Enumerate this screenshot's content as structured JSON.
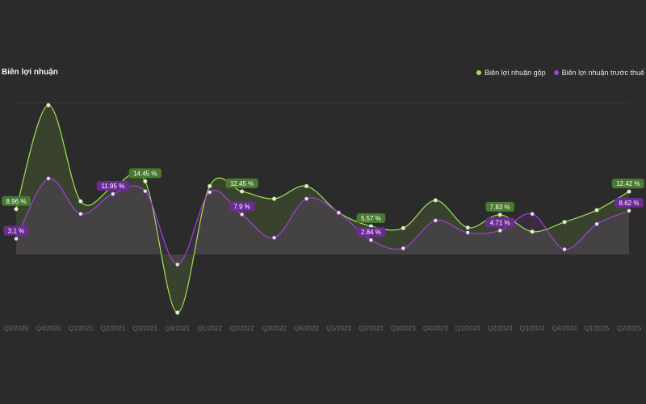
{
  "chart_data": {
    "type": "line",
    "title": "Biên lợi nhuận",
    "categories": [
      "Q3/2020",
      "Q4/2020",
      "Q1/2021",
      "Q2/2021",
      "Q3/2021",
      "Q4/2021",
      "Q1/2022",
      "Q2/2022",
      "Q3/2022",
      "Q4/2022",
      "Q1/2023",
      "Q2/2023",
      "Q3/2023",
      "Q4/2023",
      "Q1/2024",
      "Q2/2024",
      "Q3/2024",
      "Q4/2024",
      "Q1/2025",
      "Q2/2025"
    ],
    "series": [
      {
        "name": "Biên lợi nhuận gộp",
        "color": "#9ee34f",
        "values": [
          8.96,
          29.5,
          10.5,
          13.2,
          14.45,
          -11.5,
          13.5,
          12.45,
          11.0,
          13.5,
          8.25,
          5.57,
          5.2,
          10.7,
          5.3,
          7.83,
          4.5,
          6.4,
          8.75,
          12.42
        ]
      },
      {
        "name": "Biên lợi nhuận trước thuế",
        "color": "#a040d6",
        "values": [
          3.1,
          15.0,
          8.0,
          11.95,
          12.5,
          -2.0,
          12.3,
          7.9,
          3.3,
          11.0,
          8.25,
          2.84,
          1.2,
          6.7,
          4.3,
          4.71,
          8.0,
          1.0,
          6.0,
          8.62
        ]
      }
    ],
    "data_labels": [
      {
        "series": 0,
        "index": 0,
        "text": "8.96 %"
      },
      {
        "series": 0,
        "index": 4,
        "text": "14.45 %"
      },
      {
        "series": 0,
        "index": 7,
        "text": "12.45 %"
      },
      {
        "series": 0,
        "index": 11,
        "text": "5.57 %"
      },
      {
        "series": 0,
        "index": 15,
        "text": "7.83 %"
      },
      {
        "series": 0,
        "index": 19,
        "text": "12.42 %"
      },
      {
        "series": 1,
        "index": 0,
        "text": "3.1 %"
      },
      {
        "series": 1,
        "index": 3,
        "text": "11.95 %"
      },
      {
        "series": 1,
        "index": 7,
        "text": "7.9 %"
      },
      {
        "series": 1,
        "index": 11,
        "text": "2.84 %"
      },
      {
        "series": 1,
        "index": 15,
        "text": "4.71 %"
      },
      {
        "series": 1,
        "index": 19,
        "text": "8.62 %"
      }
    ],
    "ylim": [
      -12,
      30
    ],
    "legend_position": "top-right",
    "grid": true
  }
}
